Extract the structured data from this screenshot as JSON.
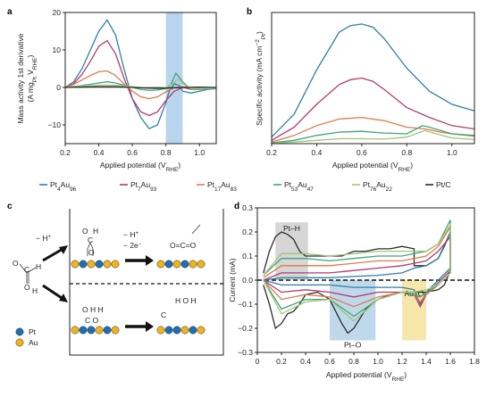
{
  "colors": {
    "Pt4Au96": "#2c7fa9",
    "Pt7Au93": "#b23b6d",
    "Pt17Au83": "#e07a4a",
    "Pt53Au47": "#3fa57a",
    "Pt76Au22": "#9fc47a",
    "PtC": "#2b2b2b",
    "highlight_a": "#b9d5ee",
    "highlight_pth": "#c8c8c8",
    "highlight_pto": "#a9cbe3",
    "highlight_auo": "#f2de8e",
    "pt_atom": "#1f6fb5",
    "au_atom": "#f0b419"
  },
  "panel_labels": {
    "a": "a",
    "b": "b",
    "c": "c",
    "d": "d"
  },
  "legend": {
    "items": [
      {
        "key": "Pt4Au96",
        "base": "Pt",
        "sub1": "4",
        "mid": "Au",
        "sub2": "96"
      },
      {
        "key": "Pt7Au93",
        "base": "Pt",
        "sub1": "7",
        "mid": "Au",
        "sub2": "93"
      },
      {
        "key": "Pt17Au83",
        "base": "Pt",
        "sub1": "17",
        "mid": "Au",
        "sub2": "83"
      },
      {
        "key": "Pt53Au47",
        "base": "Pt",
        "sub1": "53",
        "mid": "Au",
        "sub2": "47"
      },
      {
        "key": "Pt76Au22",
        "base": "Pt",
        "sub1": "76",
        "mid": "Au",
        "sub2": "22"
      },
      {
        "key": "PtC",
        "base": "Pt/C",
        "sub1": "",
        "mid": "",
        "sub2": ""
      }
    ]
  },
  "chart_data": [
    {
      "panel": "a",
      "type": "line",
      "xlabel_main": "Applied potential (V",
      "xlabel_sub": "RHE",
      "ylabel_main": "Mass activity 1st derivative",
      "ylabel_unit": "(A mg",
      "ylabel_sub1": "Pt",
      "ylabel_mid": " V",
      "ylabel_sub2": "RHE",
      "xlim": [
        0.2,
        1.1
      ],
      "ylim": [
        -15,
        20
      ],
      "xticks": [
        "0.2",
        "0.4",
        "0.6",
        "0.8",
        "1.0"
      ],
      "yticks": [
        "−10",
        "0",
        "10",
        "20"
      ],
      "highlight_x": [
        0.8,
        0.9
      ],
      "series": [
        {
          "key": "Pt4Au96",
          "x": [
            0.2,
            0.25,
            0.3,
            0.35,
            0.4,
            0.45,
            0.5,
            0.55,
            0.6,
            0.65,
            0.7,
            0.75,
            0.8,
            0.82,
            0.85,
            0.88,
            0.9,
            0.95,
            1.0,
            1.05,
            1.1
          ],
          "y": [
            0,
            1.5,
            5,
            10,
            15,
            18,
            14,
            5,
            -3,
            -8,
            -11,
            -10,
            -4,
            -1,
            1,
            0.5,
            -1,
            -1.5,
            -1,
            -0.5,
            -0.3
          ]
        },
        {
          "key": "Pt7Au93",
          "x": [
            0.2,
            0.25,
            0.3,
            0.35,
            0.4,
            0.45,
            0.5,
            0.55,
            0.6,
            0.65,
            0.7,
            0.75,
            0.8,
            0.85,
            0.9,
            0.95,
            1.0,
            1.05,
            1.1
          ],
          "y": [
            0,
            1,
            3.5,
            7,
            11,
            12.5,
            9,
            2.5,
            -3,
            -6.5,
            -7.5,
            -6.5,
            -3.5,
            -1,
            0,
            -0.5,
            -0.5,
            -0.3,
            -0.2
          ]
        },
        {
          "key": "Pt17Au83",
          "x": [
            0.2,
            0.25,
            0.3,
            0.35,
            0.4,
            0.45,
            0.5,
            0.55,
            0.6,
            0.65,
            0.7,
            0.75,
            0.8,
            0.85,
            0.9,
            0.95,
            1.0,
            1.1
          ],
          "y": [
            0,
            0.8,
            2,
            3.2,
            4.2,
            4.4,
            3.2,
            1,
            -1,
            -2.5,
            -3,
            -2.5,
            -1.2,
            0,
            0.2,
            -0.2,
            -0.3,
            -0.2
          ]
        },
        {
          "key": "Pt53Au47",
          "x": [
            0.2,
            0.3,
            0.4,
            0.45,
            0.5,
            0.55,
            0.6,
            0.65,
            0.7,
            0.75,
            0.8,
            0.83,
            0.86,
            0.9,
            0.95,
            1.0,
            1.05,
            1.1
          ],
          "y": [
            0,
            0.5,
            1.2,
            1.5,
            1.2,
            0.6,
            0,
            -0.5,
            -0.8,
            -0.7,
            -0.3,
            0.8,
            3.8,
            1.5,
            -0.5,
            -0.5,
            -0.3,
            -0.2
          ]
        },
        {
          "key": "Pt76Au22",
          "x": [
            0.2,
            0.3,
            0.4,
            0.5,
            0.6,
            0.7,
            0.75,
            0.8,
            0.84,
            0.87,
            0.9,
            0.95,
            1.0,
            1.1
          ],
          "y": [
            0,
            0.3,
            0.6,
            0.6,
            0.2,
            -0.2,
            -0.3,
            0,
            1,
            2.2,
            1,
            -0.3,
            -0.3,
            -0.2
          ]
        },
        {
          "key": "PtC",
          "x": [
            0.2,
            0.3,
            0.4,
            0.5,
            0.6,
            0.7,
            0.8,
            0.9,
            1.0,
            1.1
          ],
          "y": [
            0,
            0.1,
            0.2,
            0.2,
            0,
            -0.2,
            -0.2,
            0,
            0.1,
            0
          ]
        }
      ]
    },
    {
      "panel": "b",
      "type": "line",
      "xlabel_main": "Applied potential (V",
      "xlabel_sub": "RHE",
      "ylabel_main": "Specific activity (mA cm",
      "ylabel_sup": "−2",
      "ylabel_sub": "Pt",
      "xlim": [
        0.2,
        1.1
      ],
      "ylim": [
        0,
        8
      ],
      "xticks": [
        "0.2",
        "0.4",
        "0.6",
        "0.8",
        "1.0"
      ],
      "yticks": [],
      "series": [
        {
          "key": "Pt4Au96",
          "x": [
            0.2,
            0.3,
            0.4,
            0.5,
            0.55,
            0.6,
            0.65,
            0.7,
            0.8,
            0.9,
            1.0,
            1.1
          ],
          "y": [
            0.4,
            1.8,
            4.5,
            6.8,
            7.2,
            7.3,
            7.1,
            6.4,
            4.6,
            3.2,
            2.4,
            2.0
          ]
        },
        {
          "key": "Pt7Au93",
          "x": [
            0.2,
            0.3,
            0.4,
            0.5,
            0.55,
            0.6,
            0.65,
            0.7,
            0.8,
            0.9,
            1.0,
            1.1
          ],
          "y": [
            0.2,
            1.0,
            2.4,
            3.6,
            3.9,
            4.0,
            3.8,
            3.3,
            2.2,
            1.6,
            1.1,
            0.9
          ]
        },
        {
          "key": "Pt17Au83",
          "x": [
            0.2,
            0.3,
            0.4,
            0.5,
            0.6,
            0.7,
            0.8,
            0.88,
            0.95,
            1.0,
            1.1
          ],
          "y": [
            0.1,
            0.5,
            1.1,
            1.5,
            1.6,
            1.4,
            1.0,
            0.9,
            0.7,
            0.6,
            0.45
          ]
        },
        {
          "key": "Pt53Au47",
          "x": [
            0.2,
            0.3,
            0.4,
            0.5,
            0.6,
            0.7,
            0.8,
            0.87,
            0.9,
            0.95,
            1.0,
            1.1
          ],
          "y": [
            0.05,
            0.2,
            0.5,
            0.7,
            0.75,
            0.65,
            0.6,
            1.1,
            1.0,
            0.8,
            0.6,
            0.5
          ]
        },
        {
          "key": "Pt76Au22",
          "x": [
            0.2,
            0.3,
            0.4,
            0.5,
            0.6,
            0.7,
            0.8,
            0.88,
            0.93,
            1.0,
            1.1
          ],
          "y": [
            0.02,
            0.1,
            0.2,
            0.3,
            0.3,
            0.28,
            0.4,
            0.8,
            0.6,
            0.35,
            0.25
          ]
        }
      ]
    },
    {
      "panel": "d",
      "type": "line",
      "xlabel_main": "Applied potential (V",
      "xlabel_sub": "RHE",
      "ylabel": "Current (mA)",
      "xlim": [
        0.0,
        1.8
      ],
      "ylim": [
        -0.3,
        0.3
      ],
      "xticks": [
        "0",
        "0.2",
        "0.4",
        "0.6",
        "0.8",
        "1.0",
        "1.2",
        "1.4",
        "1.6",
        "1.8"
      ],
      "yticks": [
        "−0.3",
        "−0.2",
        "−0.1",
        "0.0",
        "0.1",
        "0.2",
        "0.3"
      ],
      "highlights": [
        {
          "label": "Pt–H",
          "x": [
            0.15,
            0.42
          ],
          "color_key": "highlight_pth"
        },
        {
          "label": "Pt–O",
          "x": [
            0.6,
            0.98
          ],
          "color_key": "highlight_pto"
        },
        {
          "label": "Au–O",
          "x": [
            1.2,
            1.4
          ],
          "color_key": "highlight_auo"
        }
      ],
      "series": [
        {
          "key": "PtC",
          "x": [
            0.05,
            0.1,
            0.15,
            0.2,
            0.25,
            0.3,
            0.35,
            0.4,
            0.5,
            0.6,
            0.7,
            0.8,
            0.9,
            1.0,
            1.1,
            1.2,
            1.3,
            1.3,
            1.4,
            1.5,
            1.55,
            1.6,
            1.6,
            1.55,
            1.5,
            1.4,
            1.3,
            1.2,
            1.1,
            1.0,
            0.9,
            0.8,
            0.75,
            0.7,
            0.6,
            0.5,
            0.4,
            0.35,
            0.3,
            0.25,
            0.2,
            0.15,
            0.1,
            0.05
          ],
          "y": [
            0.03,
            0.12,
            0.18,
            0.2,
            0.19,
            0.17,
            0.12,
            0.1,
            0.1,
            0.1,
            0.1,
            0.12,
            0.12,
            0.13,
            0.13,
            0.14,
            0.13,
            0.06,
            0.06,
            0.09,
            0.14,
            0.2,
            0.04,
            -0.02,
            -0.04,
            -0.05,
            -0.05,
            -0.05,
            -0.06,
            -0.08,
            -0.12,
            -0.2,
            -0.22,
            -0.18,
            -0.08,
            -0.05,
            -0.06,
            -0.1,
            -0.13,
            -0.14,
            -0.18,
            -0.2,
            -0.1,
            -0.02
          ]
        },
        {
          "key": "Pt4Au96",
          "x": [
            0.05,
            0.2,
            0.4,
            0.6,
            0.8,
            1.0,
            1.2,
            1.3,
            1.4,
            1.5,
            1.6,
            1.6,
            1.5,
            1.4,
            1.35,
            1.3,
            1.2,
            1.0,
            0.8,
            0.6,
            0.4,
            0.2,
            0.05
          ],
          "y": [
            0,
            0.01,
            0.01,
            0.01,
            0.015,
            0.02,
            0.03,
            0.05,
            0.06,
            0.09,
            0.2,
            0.05,
            0.0,
            -0.05,
            -0.1,
            -0.04,
            -0.03,
            -0.03,
            -0.03,
            -0.02,
            -0.02,
            -0.02,
            0
          ]
        },
        {
          "key": "Pt7Au93",
          "x": [
            0.05,
            0.2,
            0.4,
            0.6,
            0.8,
            1.0,
            1.2,
            1.3,
            1.4,
            1.5,
            1.6,
            1.6,
            1.5,
            1.4,
            1.35,
            1.3,
            1.2,
            1.0,
            0.8,
            0.6,
            0.4,
            0.2,
            0.05
          ],
          "y": [
            0,
            0.03,
            0.03,
            0.03,
            0.04,
            0.05,
            0.06,
            0.07,
            0.08,
            0.12,
            0.18,
            0.04,
            -0.01,
            -0.06,
            -0.11,
            -0.06,
            -0.05,
            -0.05,
            -0.07,
            -0.05,
            -0.04,
            -0.05,
            0
          ]
        },
        {
          "key": "Pt17Au83",
          "x": [
            0.05,
            0.2,
            0.4,
            0.6,
            0.8,
            1.0,
            1.2,
            1.3,
            1.4,
            1.5,
            1.6,
            1.6,
            1.5,
            1.4,
            1.35,
            1.3,
            1.2,
            1.0,
            0.8,
            0.6,
            0.4,
            0.2,
            0.05
          ],
          "y": [
            0.01,
            0.06,
            0.06,
            0.06,
            0.07,
            0.08,
            0.08,
            0.09,
            0.1,
            0.14,
            0.22,
            0.03,
            -0.02,
            -0.06,
            -0.09,
            -0.06,
            -0.05,
            -0.07,
            -0.11,
            -0.07,
            -0.06,
            -0.08,
            0
          ]
        },
        {
          "key": "Pt53Au47",
          "x": [
            0.05,
            0.2,
            0.4,
            0.6,
            0.8,
            1.0,
            1.2,
            1.3,
            1.4,
            1.5,
            1.6,
            1.6,
            1.5,
            1.4,
            1.35,
            1.3,
            1.2,
            1.0,
            0.8,
            0.6,
            0.4,
            0.2,
            0.05
          ],
          "y": [
            0.02,
            0.09,
            0.09,
            0.08,
            0.09,
            0.1,
            0.1,
            0.11,
            0.12,
            0.15,
            0.25,
            0.03,
            -0.02,
            -0.05,
            -0.07,
            -0.06,
            -0.05,
            -0.08,
            -0.15,
            -0.08,
            -0.08,
            -0.12,
            0
          ]
        },
        {
          "key": "Pt76Au22",
          "x": [
            0.05,
            0.2,
            0.4,
            0.6,
            0.8,
            1.0,
            1.2,
            1.3,
            1.4,
            1.5,
            1.6,
            1.6,
            1.5,
            1.4,
            1.3,
            1.2,
            1.0,
            0.8,
            0.6,
            0.4,
            0.2,
            0.05
          ],
          "y": [
            0.02,
            0.11,
            0.11,
            0.1,
            0.11,
            0.12,
            0.12,
            0.12,
            0.12,
            0.15,
            0.23,
            0.03,
            -0.02,
            -0.04,
            -0.05,
            -0.05,
            -0.08,
            -0.17,
            -0.08,
            -0.09,
            -0.14,
            0
          ]
        }
      ]
    }
  ],
  "diagram": {
    "step1": "− H",
    "step1_sup": "+",
    "step2a": "− H",
    "step2a_sup": "+",
    "step2b": "− 2e",
    "step2b_sup": "−",
    "legend_pt": "Pt",
    "legend_au": "Au"
  }
}
